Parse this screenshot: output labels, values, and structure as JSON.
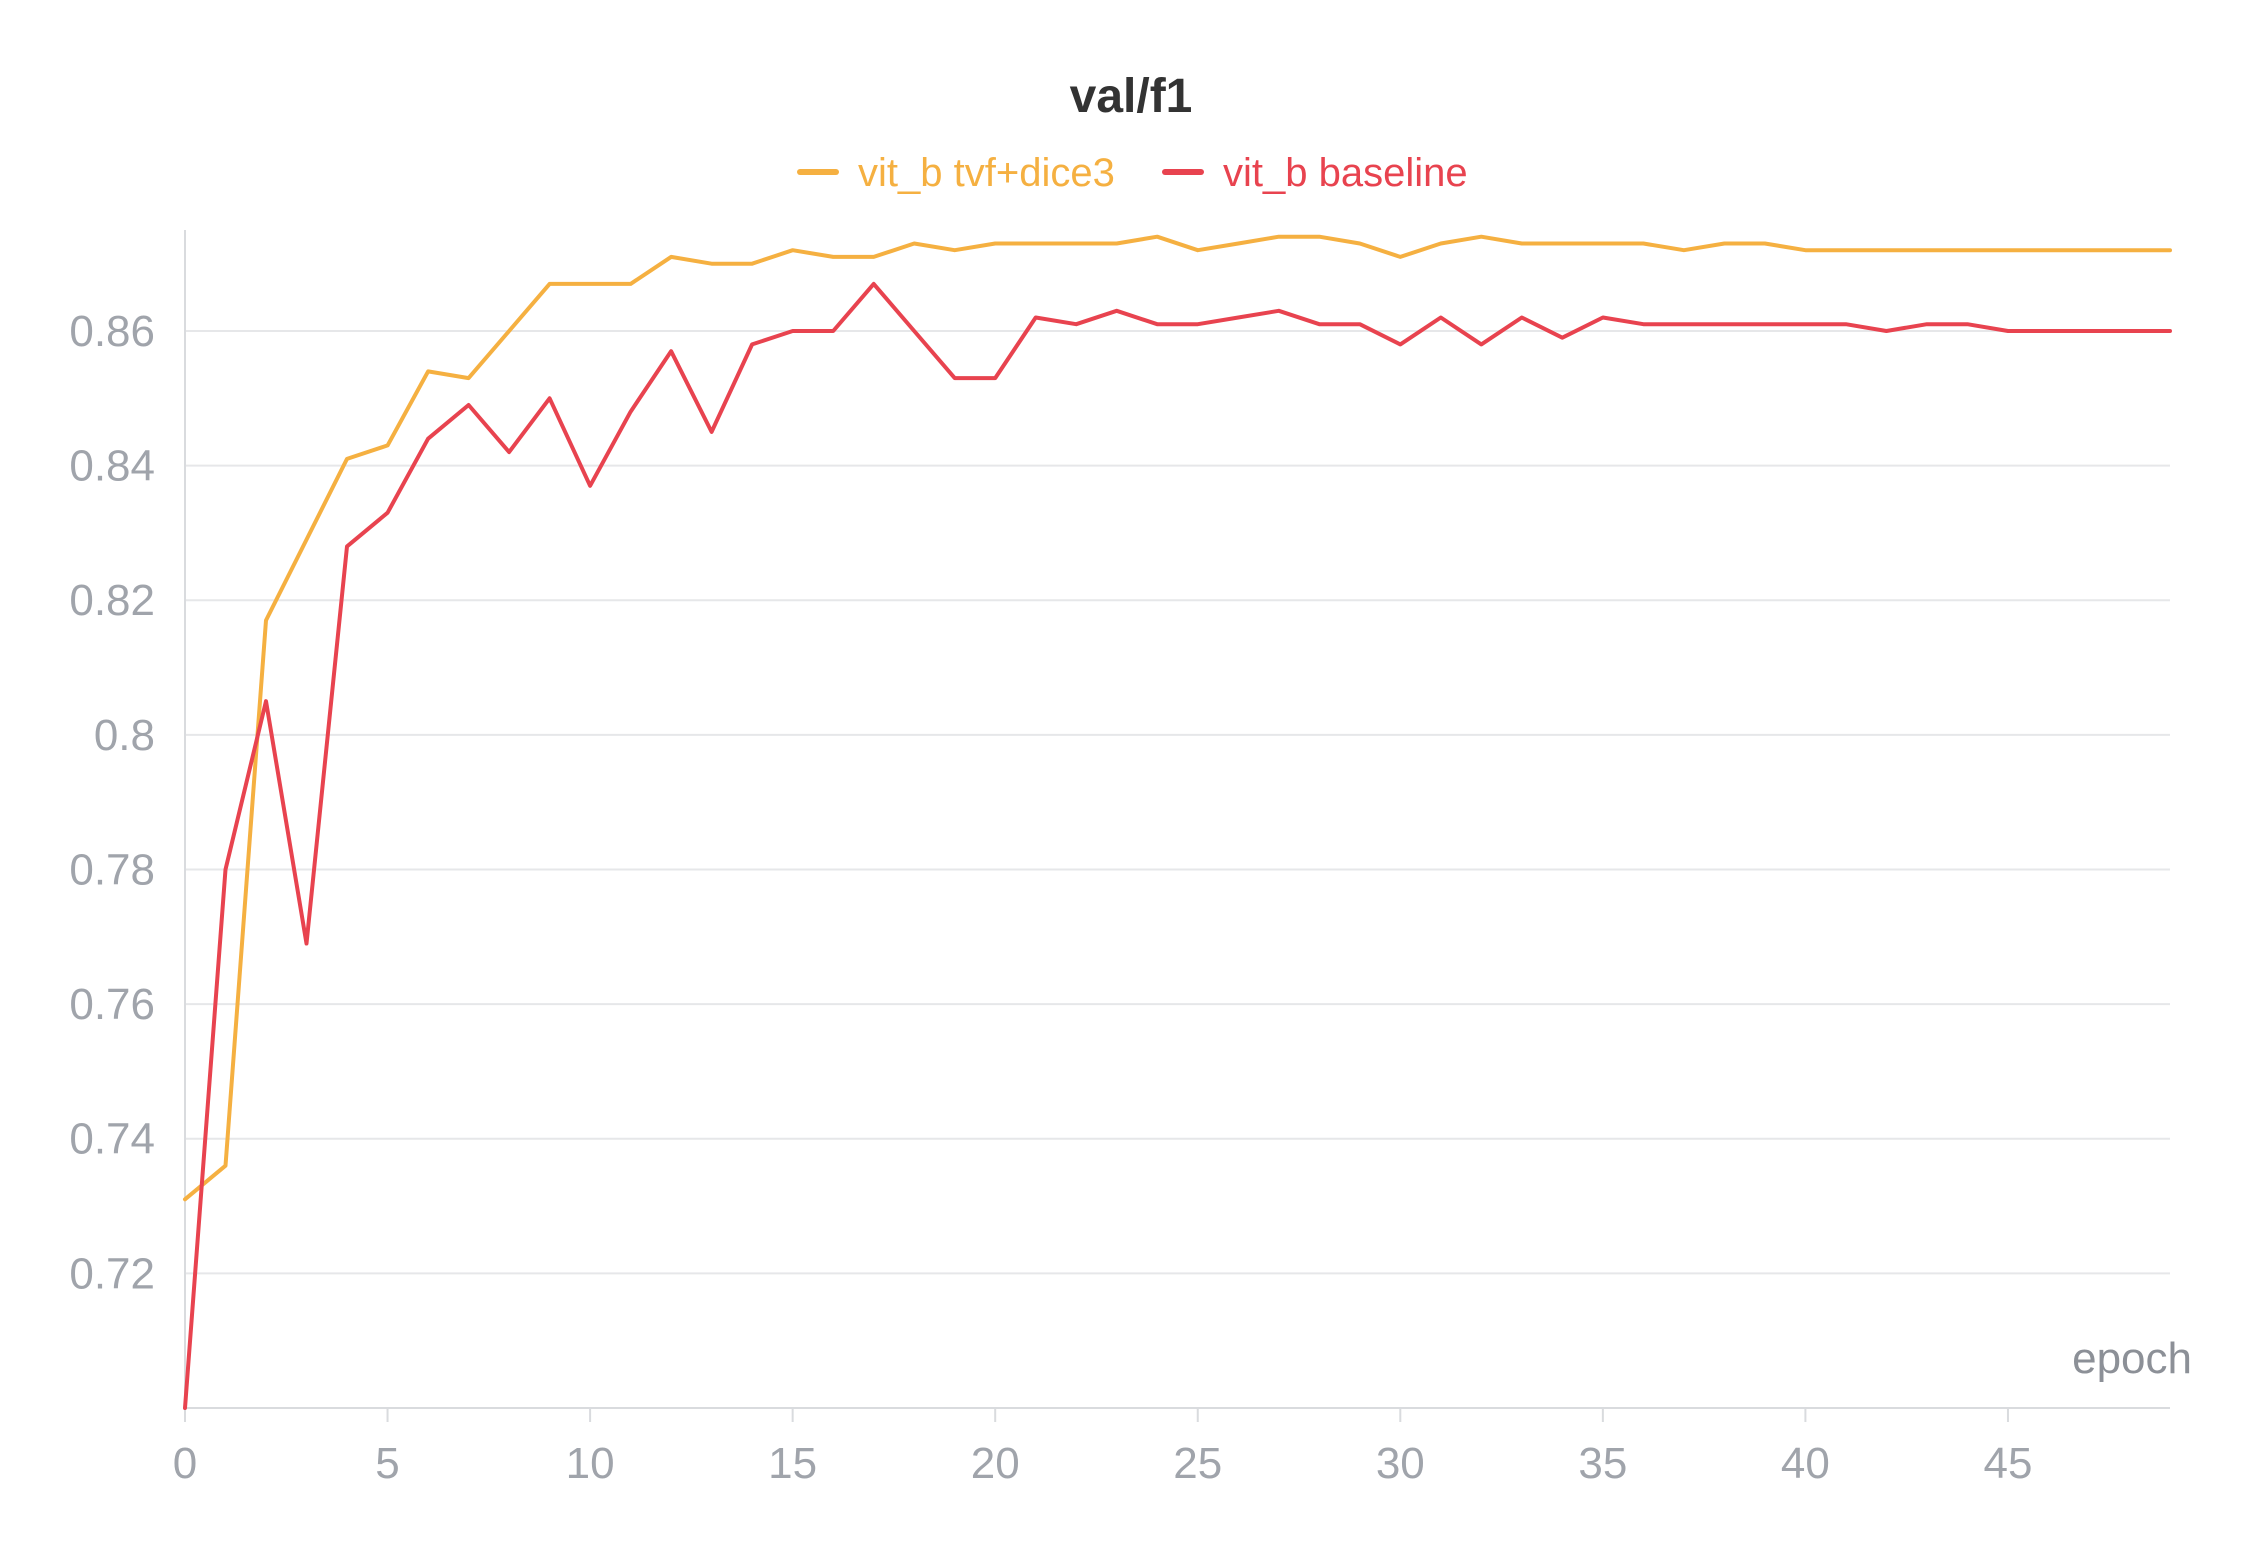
{
  "chart_data": {
    "type": "line",
    "title": "val/f1",
    "xlabel": "epoch",
    "ylabel": "",
    "xlim": [
      0,
      49
    ],
    "ylim": [
      0.7,
      0.875
    ],
    "x_ticks": [
      0,
      5,
      10,
      15,
      20,
      25,
      30,
      35,
      40,
      45
    ],
    "y_ticks": [
      0.72,
      0.74,
      0.76,
      0.78,
      0.8,
      0.82,
      0.84,
      0.86
    ],
    "y_tick_labels": [
      "0.72",
      "0.74",
      "0.76",
      "0.78",
      "0.8",
      "0.82",
      "0.84",
      "0.86"
    ],
    "x_tick_labels": [
      "0",
      "5",
      "10",
      "15",
      "20",
      "25",
      "30",
      "35",
      "40",
      "45"
    ],
    "grid": "horizontal",
    "legend": "top-center",
    "x": [
      0,
      1,
      2,
      3,
      4,
      5,
      6,
      7,
      8,
      9,
      10,
      11,
      12,
      13,
      14,
      15,
      16,
      17,
      18,
      19,
      20,
      21,
      22,
      23,
      24,
      25,
      26,
      27,
      28,
      29,
      30,
      31,
      32,
      33,
      34,
      35,
      36,
      37,
      38,
      39,
      40,
      41,
      42,
      43,
      44,
      45,
      46,
      47,
      48,
      49
    ],
    "series": [
      {
        "name": "vit_b tvf+dice3",
        "color": "#f5b041",
        "values": [
          0.731,
          0.736,
          0.817,
          0.829,
          0.841,
          0.843,
          0.854,
          0.853,
          0.86,
          0.867,
          0.867,
          0.867,
          0.871,
          0.87,
          0.87,
          0.872,
          0.871,
          0.871,
          0.873,
          0.872,
          0.873,
          0.873,
          0.873,
          0.873,
          0.874,
          0.872,
          0.873,
          0.874,
          0.874,
          0.873,
          0.871,
          0.873,
          0.874,
          0.873,
          0.873,
          0.873,
          0.873,
          0.872,
          0.873,
          0.873,
          0.872,
          0.872,
          0.872,
          0.872,
          0.872,
          0.872,
          0.872,
          0.872,
          0.872,
          0.872
        ]
      },
      {
        "name": "vit_b baseline",
        "color": "#e8434f",
        "values": [
          0.7,
          0.78,
          0.805,
          0.769,
          0.828,
          0.833,
          0.844,
          0.849,
          0.842,
          0.85,
          0.837,
          0.848,
          0.857,
          0.845,
          0.858,
          0.86,
          0.86,
          0.867,
          0.86,
          0.853,
          0.853,
          0.862,
          0.861,
          0.863,
          0.861,
          0.861,
          0.862,
          0.863,
          0.861,
          0.861,
          0.858,
          0.862,
          0.858,
          0.862,
          0.859,
          0.862,
          0.861,
          0.861,
          0.861,
          0.861,
          0.861,
          0.861,
          0.86,
          0.861,
          0.861,
          0.86,
          0.86,
          0.86,
          0.86,
          0.86
        ]
      }
    ],
    "colors": {
      "title": "#333333",
      "tick": "#a0a4ab",
      "axis": "#d9dbde",
      "grid": "#e6e7e9",
      "xlabel": "#8c9097"
    }
  }
}
